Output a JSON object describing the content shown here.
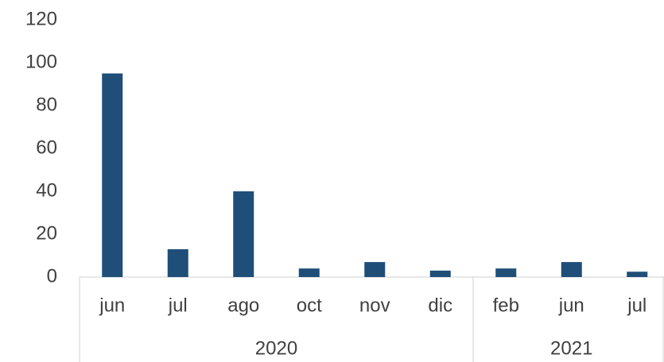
{
  "chart_data": {
    "type": "bar",
    "categories": [
      "jun",
      "jul",
      "ago",
      "oct",
      "nov",
      "dic",
      "feb",
      "jun",
      "jul"
    ],
    "groups": [
      "2020",
      "2020",
      "2020",
      "2020",
      "2020",
      "2020",
      "2021",
      "2021",
      "2021"
    ],
    "values": [
      95,
      13,
      40,
      4,
      7,
      3,
      4,
      7,
      2.5
    ],
    "color": "#1f4e79",
    "ylim": [
      0,
      120
    ],
    "yticks": [
      0,
      20,
      40,
      60,
      80,
      100,
      120
    ],
    "grid": false
  }
}
